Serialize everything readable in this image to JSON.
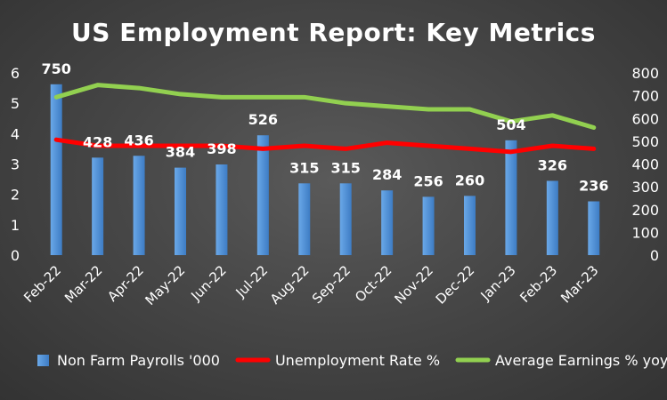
{
  "chart_data": {
    "type": "bar",
    "title": "US Employment Report: Key Metrics",
    "categories": [
      "Feb-22",
      "Mar-22",
      "Apr-22",
      "May-22",
      "Jun-22",
      "Jul-22",
      "Aug-22",
      "Sep-22",
      "Oct-22",
      "Nov-22",
      "Dec-22",
      "Jan-23",
      "Feb-23",
      "Mar-23"
    ],
    "left_axis": {
      "ylim": [
        0,
        6
      ],
      "ticks": [
        "0",
        "1",
        "2",
        "3",
        "4",
        "5",
        "6"
      ]
    },
    "right_axis": {
      "ylim": [
        0,
        800
      ],
      "ticks": [
        "0",
        "100",
        "200",
        "300",
        "400",
        "500",
        "600",
        "700",
        "800"
      ]
    },
    "series": [
      {
        "name": "Non Farm Payrolls '000",
        "type": "bar",
        "axis": "right",
        "color": "#4a90d9",
        "values": [
          750,
          428,
          436,
          384,
          398,
          526,
          315,
          315,
          284,
          256,
          260,
          504,
          326,
          236
        ],
        "data_labels": [
          "750",
          "428",
          "436",
          "384",
          "398",
          "526",
          "315",
          "315",
          "284",
          "256",
          "260",
          "504",
          "326",
          "236"
        ]
      },
      {
        "name": "Unemployment Rate %",
        "type": "line",
        "axis": "left",
        "color": "#ff0000",
        "values": [
          3.8,
          3.6,
          3.6,
          3.6,
          3.6,
          3.5,
          3.6,
          3.5,
          3.7,
          3.6,
          3.5,
          3.4,
          3.6,
          3.5
        ]
      },
      {
        "name": "Average Earnings % yoy",
        "type": "line",
        "axis": "left",
        "color": "#92d050",
        "values": [
          5.2,
          5.6,
          5.5,
          5.3,
          5.2,
          5.2,
          5.2,
          5.0,
          4.9,
          4.8,
          4.8,
          4.4,
          4.6,
          4.2
        ]
      }
    ],
    "legend_position": "bottom",
    "grid": false
  }
}
